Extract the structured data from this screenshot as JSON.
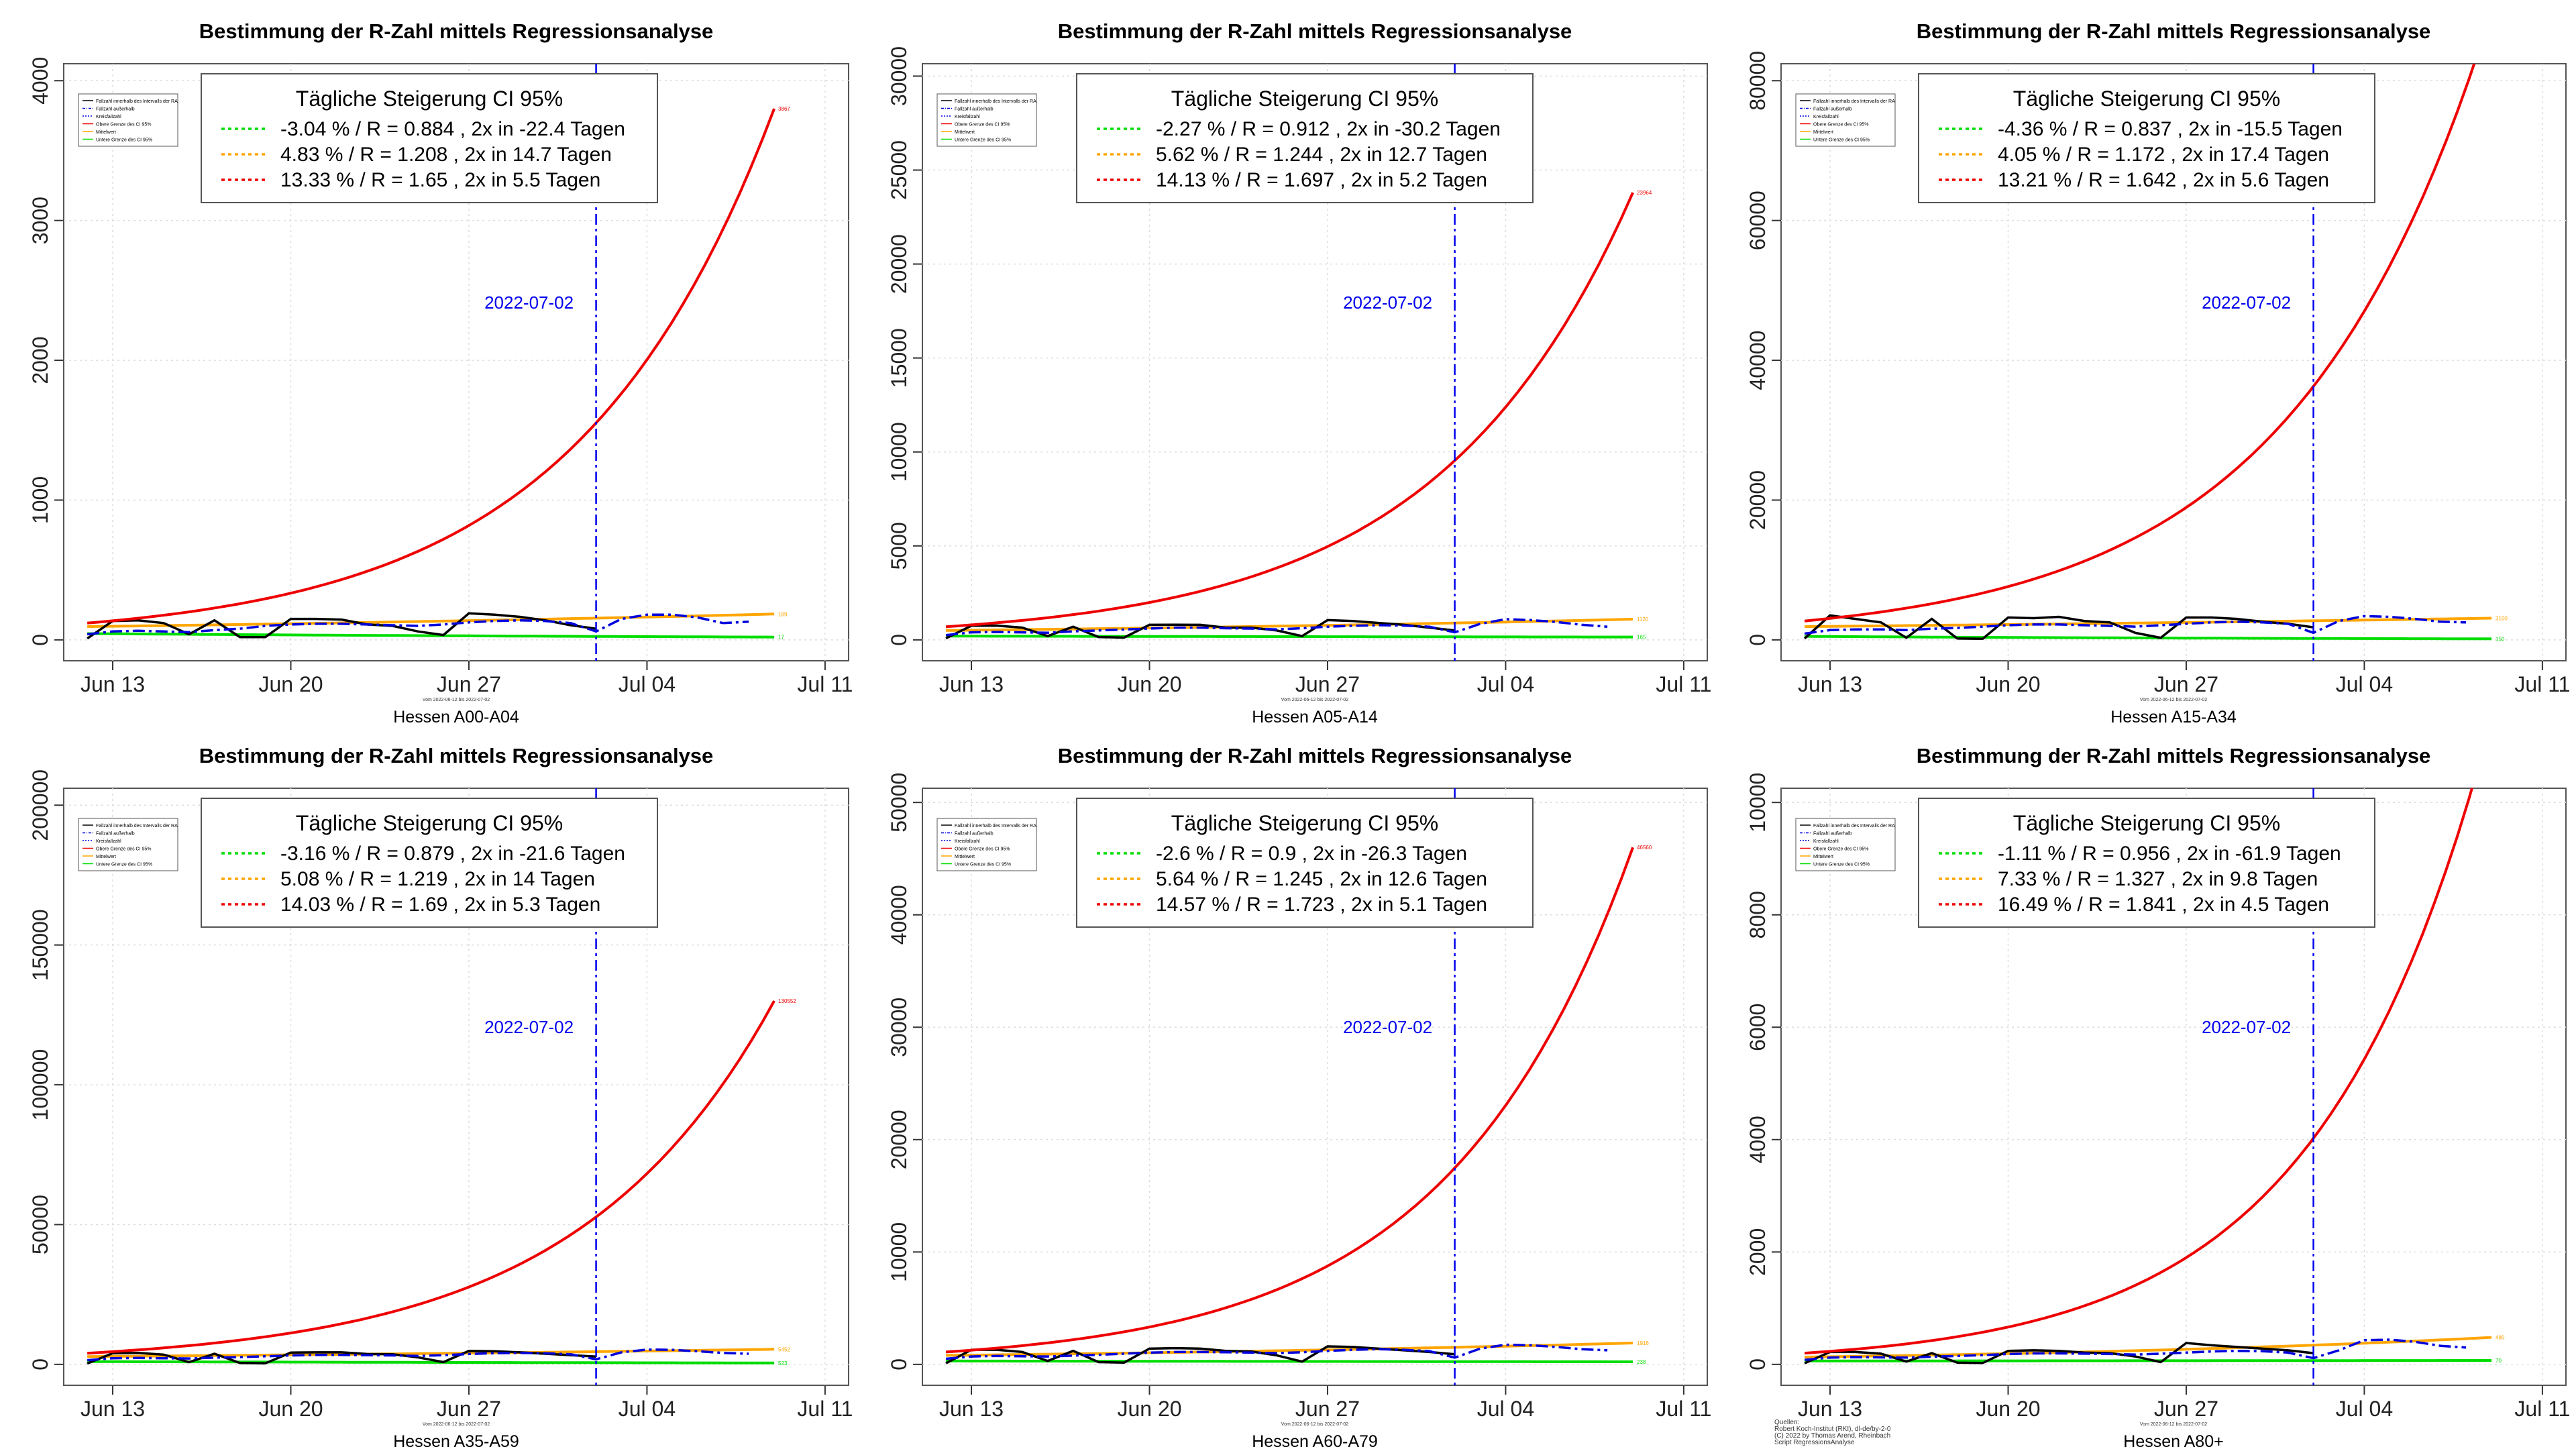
{
  "colors": {
    "observed": "#000000",
    "smoothed": "#0000dd",
    "upper": "#ee0000",
    "mean": "#ffa500",
    "lower": "#00dd00",
    "dateline": "#0000ee",
    "legend_lines": [
      "#000000",
      "#0000dd",
      "#0000dd",
      "#ee0000",
      "#ffa500",
      "#00dd00"
    ]
  },
  "legend_title": "Tägliche Steigerung CI  95%",
  "date_label": "2022-07-02",
  "small_legend": [
    "Fallzahl innerhalb des Intervalls der RA",
    "Fallzahl außerhalb",
    "Kreisfallzahl",
    "Obere Grenze des CI 95%",
    "Mittelwert",
    "Untere Grenze des CI 95%"
  ],
  "small_note": "Vom 2022-06-12 bis 2022-07-02",
  "sources": [
    "Quellen:",
    "Robert Koch-Institut (RKI), dl-de/by-2-0",
    "(C) 2022 by Thomas Arend, Rheinbach",
    "Script RegressionsAnalyse"
  ],
  "chart_data": [
    {
      "type": "line",
      "title": "Bestimmung der R-Zahl mittels Regressionsanalyse",
      "xlabel": "Hessen A00-A04",
      "ylabel": "",
      "x_ticks": [
        "Jun 13",
        "Jun 20",
        "Jun 27",
        "Jul 04",
        "Jul 11"
      ],
      "y_ticks": [
        "0",
        "1000",
        "2000",
        "3000",
        "4000"
      ],
      "ylim": [
        0,
        4100
      ],
      "legend": [
        "-3.04 % / R = 0.884 , 2x in -22.4 Tagen",
        "4.83 % / R = 1.208 , 2x in 14.7 Tagen",
        "13.33 % / R = 1.65 , 2x in 5.5 Tagen"
      ],
      "end_labels": [
        "3867",
        "189",
        "17"
      ],
      "upper": {
        "start": 120,
        "end": 3800
      },
      "mean": {
        "start": 95,
        "end": 185
      },
      "lower": {
        "start": 45,
        "end": 20
      },
      "observed": [
        10,
        135,
        140,
        120,
        40,
        140,
        20,
        20,
        150,
        150,
        145,
        110,
        100,
        60,
        35,
        190,
        180,
        165,
        140,
        105,
        80
      ],
      "smoothed": [
        40,
        60,
        65,
        60,
        55,
        70,
        80,
        100,
        110,
        115,
        115,
        110,
        105,
        100,
        110,
        125,
        135,
        140,
        135,
        120,
        60,
        150,
        180,
        180,
        160,
        120,
        130
      ],
      "notes": []
    },
    {
      "type": "line",
      "title": "Bestimmung der R-Zahl mittels Regressionsanalyse",
      "xlabel": "Hessen A05-A14",
      "ylabel": "",
      "x_ticks": [
        "Jun 13",
        "Jun 20",
        "Jun 27",
        "Jul 04",
        "Jul 11"
      ],
      "y_ticks": [
        "0",
        "5000",
        "10000",
        "15000",
        "20000",
        "25000",
        "30000"
      ],
      "ylim": [
        0,
        30500
      ],
      "legend": [
        "-2.27 % / R = 0.912 , 2x in -30.2 Tagen",
        "5.62 % / R = 1.244 , 2x in 12.7 Tagen",
        "14.13 % / R = 1.697 , 2x in 5.2 Tagen"
      ],
      "end_labels": [
        "23964",
        "1120",
        "165"
      ],
      "upper": {
        "start": 700,
        "end": 23800
      },
      "mean": {
        "start": 500,
        "end": 1100
      },
      "lower": {
        "start": 200,
        "end": 150
      },
      "observed": [
        80,
        750,
        760,
        650,
        200,
        700,
        150,
        120,
        800,
        810,
        800,
        650,
        650,
        500,
        200,
        1050,
        1000,
        900,
        800,
        650,
        500
      ],
      "smoothed": [
        250,
        400,
        420,
        400,
        380,
        450,
        500,
        550,
        600,
        650,
        650,
        620,
        600,
        560,
        620,
        700,
        750,
        780,
        760,
        700,
        400,
        850,
        1100,
        1050,
        950,
        800,
        700
      ],
      "notes": []
    },
    {
      "type": "line",
      "title": "Bestimmung der R-Zahl mittels Regressionsanalyse",
      "xlabel": "Hessen A15-A34",
      "ylabel": "",
      "x_ticks": [
        "Jun 13",
        "Jun 20",
        "Jun 27",
        "Jul 04",
        "Jul 11"
      ],
      "y_ticks": [
        "0",
        "20000",
        "40000",
        "60000",
        "80000"
      ],
      "ylim": [
        0,
        82000
      ],
      "legend": [
        "-4.36 % / R = 0.837 , 2x in -15.5 Tagen",
        "4.05 % / R = 1.172 , 2x in 17.4 Tagen",
        "13.21 % / R = 1.642 , 2x in 5.6 Tagen"
      ],
      "end_labels": [
        "",
        "3100",
        "150"
      ],
      "upper": {
        "start": 2700,
        "end": 90000
      },
      "mean": {
        "start": 1900,
        "end": 3100
      },
      "lower": {
        "start": 500,
        "end": 150
      },
      "observed": [
        200,
        3500,
        3000,
        2500,
        300,
        3000,
        200,
        150,
        3200,
        3100,
        3300,
        2700,
        2500,
        1000,
        300,
        3200,
        3200,
        3000,
        2600,
        2300,
        1800
      ],
      "smoothed": [
        900,
        1400,
        1500,
        1500,
        1400,
        1600,
        1700,
        1900,
        2100,
        2200,
        2200,
        2100,
        2000,
        1900,
        2100,
        2300,
        2500,
        2600,
        2500,
        2300,
        1000,
        2700,
        3400,
        3300,
        3000,
        2600,
        2500
      ],
      "notes": []
    },
    {
      "type": "line",
      "title": "Bestimmung der R-Zahl mittels Regressionsanalyse",
      "xlabel": "Hessen A35-A59",
      "ylabel": "",
      "x_ticks": [
        "Jun 13",
        "Jun 20",
        "Jun 27",
        "Jul 04",
        "Jul 11"
      ],
      "y_ticks": [
        "0",
        "50000",
        "100000",
        "150000",
        "200000"
      ],
      "ylim": [
        0,
        205000
      ],
      "legend": [
        "-3.16 % / R = 0.879 , 2x in -21.6 Tagen",
        "5.08 % / R = 1.219 , 2x in 14 Tagen",
        "14.03 % / R = 1.69 , 2x in 5.3 Tagen"
      ],
      "end_labels": [
        "130552",
        "5452",
        "523"
      ],
      "upper": {
        "start": 4000,
        "end": 130000
      },
      "mean": {
        "start": 2800,
        "end": 5400
      },
      "lower": {
        "start": 1000,
        "end": 500
      },
      "observed": [
        300,
        4000,
        4100,
        3500,
        800,
        3800,
        500,
        400,
        4200,
        4300,
        4300,
        3700,
        3600,
        2500,
        800,
        4800,
        4700,
        4300,
        3800,
        3300,
        2800
      ],
      "smoothed": [
        1500,
        2200,
        2300,
        2200,
        2100,
        2400,
        2600,
        2900,
        3200,
        3400,
        3400,
        3300,
        3200,
        3000,
        3300,
        3700,
        4000,
        4100,
        4000,
        3600,
        1800,
        4300,
        5300,
        5200,
        4700,
        4100,
        3800
      ],
      "notes": []
    },
    {
      "type": "line",
      "title": "Bestimmung der R-Zahl mittels Regressionsanalyse",
      "xlabel": "Hessen A60-A79",
      "ylabel": "",
      "x_ticks": [
        "Jun 13",
        "Jun 20",
        "Jun 27",
        "Jul 04",
        "Jul 11"
      ],
      "y_ticks": [
        "0",
        "10000",
        "20000",
        "30000",
        "40000",
        "50000"
      ],
      "ylim": [
        0,
        51000
      ],
      "legend": [
        "-2.6 % / R = 0.9 , 2x in -26.3 Tagen",
        "5.64 % / R = 1.245 , 2x in 12.6 Tagen",
        "14.57 % / R = 1.723 , 2x in 5.1 Tagen"
      ],
      "end_labels": [
        "46560",
        "1916",
        "238"
      ],
      "upper": {
        "start": 1100,
        "end": 46000
      },
      "mean": {
        "start": 800,
        "end": 1900
      },
      "lower": {
        "start": 300,
        "end": 230
      },
      "observed": [
        100,
        1300,
        1300,
        1100,
        300,
        1200,
        200,
        150,
        1400,
        1450,
        1400,
        1200,
        1150,
        800,
        250,
        1600,
        1550,
        1400,
        1250,
        1100,
        900
      ],
      "smoothed": [
        500,
        700,
        750,
        720,
        700,
        780,
        850,
        950,
        1050,
        1100,
        1100,
        1080,
        1050,
        1000,
        1080,
        1200,
        1300,
        1350,
        1300,
        1180,
        600,
        1400,
        1750,
        1700,
        1550,
        1350,
        1250
      ],
      "notes": []
    },
    {
      "type": "line",
      "title": "Bestimmung der R-Zahl mittels Regressionsanalyse",
      "xlabel": "Hessen A80+",
      "ylabel": "",
      "x_ticks": [
        "Jun 13",
        "Jun 20",
        "Jun 27",
        "Jul 04",
        "Jul 11"
      ],
      "y_ticks": [
        "0",
        "2000",
        "4000",
        "6000",
        "8000",
        "10000"
      ],
      "ylim": [
        0,
        10200
      ],
      "legend": [
        "-1.11 % / R = 0.956 , 2x in -61.9 Tagen",
        "7.33 % / R = 1.327 , 2x in 9.8 Tagen",
        "16.49 % / R = 1.841 , 2x in 4.5 Tagen"
      ],
      "end_labels": [
        "",
        "480",
        "70"
      ],
      "upper": {
        "start": 200,
        "end": 11500
      },
      "mean": {
        "start": 130,
        "end": 480
      },
      "lower": {
        "start": 60,
        "end": 70
      },
      "observed": [
        20,
        220,
        220,
        190,
        50,
        200,
        30,
        25,
        240,
        250,
        240,
        210,
        200,
        140,
        40,
        380,
        340,
        310,
        280,
        250,
        200
      ],
      "smoothed": [
        80,
        120,
        130,
        125,
        120,
        135,
        150,
        165,
        185,
        195,
        195,
        190,
        185,
        175,
        190,
        210,
        230,
        240,
        235,
        210,
        110,
        250,
        430,
        440,
        400,
        330,
        300
      ],
      "notes": [
        "Quellen:",
        "Robert Koch-Institut (RKI), dl-de/by-2-0",
        "(C) 2022 by Thomas Arend, Rheinbach",
        "Script RegressionsAnalyse"
      ]
    }
  ]
}
